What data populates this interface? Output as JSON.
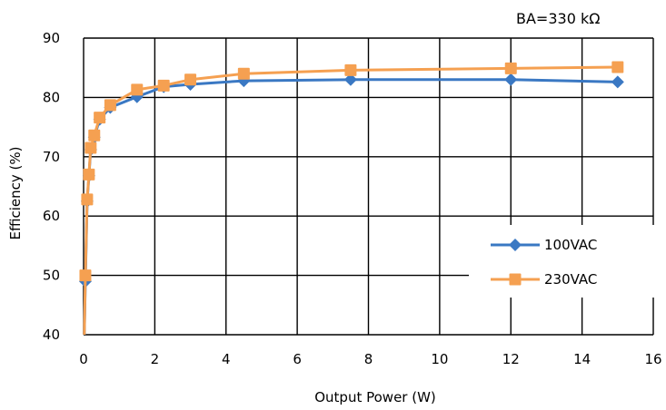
{
  "chart_data": {
    "type": "line",
    "title": "",
    "annotation": "BA=330 kΩ",
    "xlabel": "Output Power (W)",
    "ylabel": "Efficiency (%)",
    "xlim": [
      0,
      16
    ],
    "ylim": [
      40,
      90
    ],
    "xticks": [
      0,
      2,
      4,
      6,
      8,
      10,
      12,
      14,
      16
    ],
    "yticks": [
      40,
      50,
      60,
      70,
      80,
      90
    ],
    "grid": true,
    "legend_position": "lower-right",
    "series": [
      {
        "name": "100VAC",
        "color": "#3a78c3",
        "marker": "diamond",
        "x": [
          0.02,
          0.05,
          0.1,
          0.15,
          0.2,
          0.3,
          0.45,
          0.75,
          1.5,
          2.25,
          3.0,
          4.5,
          7.5,
          12.0,
          15.0
        ],
        "y": [
          40,
          49,
          62.5,
          66.8,
          71.2,
          73.3,
          76.3,
          78.3,
          80.1,
          81.8,
          82.2,
          82.8,
          83.0,
          83.0,
          82.6
        ]
      },
      {
        "name": "230VAC",
        "color": "#f5a051",
        "marker": "square",
        "x": [
          0.02,
          0.05,
          0.1,
          0.15,
          0.2,
          0.3,
          0.45,
          0.75,
          1.5,
          2.25,
          3.0,
          4.5,
          7.5,
          12.0,
          15.0
        ],
        "y": [
          40,
          50,
          62.8,
          67.0,
          71.5,
          73.6,
          76.6,
          78.7,
          81.3,
          82.0,
          83.0,
          84.0,
          84.6,
          84.9,
          85.1
        ]
      }
    ]
  }
}
